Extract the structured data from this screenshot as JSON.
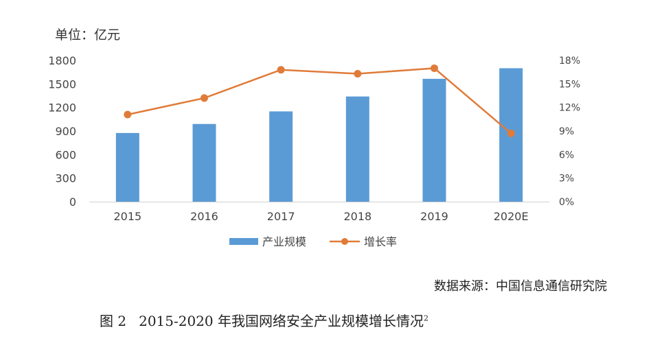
{
  "unit_label": "单位：亿元",
  "source_text": "数据来源：中国信息通信研究院",
  "caption": {
    "number": "图 2",
    "text": "2015-2020 年我国网络安全产业规模增长情况",
    "footnote": "2"
  },
  "chart_data": {
    "type": "bar",
    "categories": [
      "2015",
      "2016",
      "2017",
      "2018",
      "2019",
      "2020E"
    ],
    "series": [
      {
        "name": "产业规模",
        "type": "bar",
        "axis": "left",
        "values": [
          875,
          990,
          1150,
          1340,
          1565,
          1700
        ],
        "color": "#5b9bd5"
      },
      {
        "name": "增长率",
        "type": "line",
        "axis": "right",
        "values": [
          11.1,
          13.2,
          16.8,
          16.3,
          17.0,
          8.7
        ],
        "color": "#e07b39"
      }
    ],
    "y_left": {
      "min": 0,
      "max": 1800,
      "ticks": [
        "0",
        "300",
        "600",
        "900",
        "1200",
        "1500",
        "1800"
      ],
      "values": [
        0,
        300,
        600,
        900,
        1200,
        1500,
        1800
      ]
    },
    "y_right": {
      "min": 0,
      "max": 18,
      "ticks": [
        "0%",
        "3%",
        "6%",
        "9%",
        "12%",
        "15%",
        "18%"
      ],
      "values": [
        0,
        3,
        6,
        9,
        12,
        15,
        18
      ]
    },
    "grid": false,
    "legend_position": "bottom"
  }
}
